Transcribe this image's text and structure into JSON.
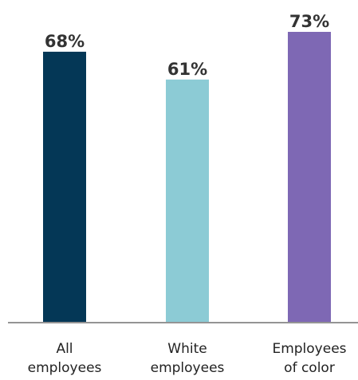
{
  "chart_data": {
    "type": "bar",
    "categories": [
      [
        "All",
        "employees"
      ],
      [
        "White",
        "employees"
      ],
      [
        "Employees",
        "of color"
      ]
    ],
    "values": [
      68,
      61,
      73
    ],
    "data_labels": [
      "68%",
      "61%",
      "73%"
    ],
    "colors": [
      "#043756",
      "#8ccbd5",
      "#7e68b4"
    ],
    "axis_color": "#555555",
    "ylim": [
      0,
      73
    ],
    "title": "",
    "xlabel": "",
    "ylabel": "",
    "grid": false,
    "legend": "none"
  }
}
